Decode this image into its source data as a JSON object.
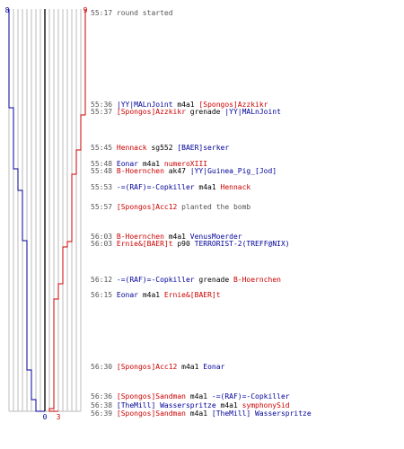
{
  "colors": {
    "red_team": "#cc0000",
    "blue_team": "#000099",
    "text": "#000000",
    "timestamp": "#555555",
    "grid": "#bbbbbb",
    "center_line": "#555555"
  },
  "scoreboard": {
    "blue_start": "8",
    "red_start": "9",
    "blue_end": "0",
    "red_end": "3"
  },
  "events": [
    {
      "time": "55:17",
      "parts": [
        {
          "text": "round started",
          "cls": "g"
        }
      ]
    },
    {
      "time": "55:36",
      "parts": [
        {
          "text": "|YY|MALnJoint",
          "cls": "b"
        },
        {
          "text": " m4a1 ",
          "cls": "k"
        },
        {
          "text": "[Spongos]Azzkikr",
          "cls": "r"
        }
      ]
    },
    {
      "time": "55:37",
      "parts": [
        {
          "text": "[Spongos]Azzkikr",
          "cls": "r"
        },
        {
          "text": " grenade ",
          "cls": "k"
        },
        {
          "text": "|YY|MALnJoint",
          "cls": "b"
        }
      ]
    },
    {
      "time": "55:45",
      "parts": [
        {
          "text": "Hennack",
          "cls": "r"
        },
        {
          "text": " sg552 ",
          "cls": "k"
        },
        {
          "text": "[BAER]serker",
          "cls": "b"
        }
      ]
    },
    {
      "time": "55:48",
      "parts": [
        {
          "text": "Eonar",
          "cls": "b"
        },
        {
          "text": " m4a1 ",
          "cls": "k"
        },
        {
          "text": "numeroXIII",
          "cls": "r"
        }
      ]
    },
    {
      "time": "55:48",
      "parts": [
        {
          "text": "B-Hoernchen",
          "cls": "r"
        },
        {
          "text": " ak47 ",
          "cls": "k"
        },
        {
          "text": "|YY|Guinea_Pig_[Jod]",
          "cls": "b"
        }
      ]
    },
    {
      "time": "55:53",
      "parts": [
        {
          "text": "-=(RAF)=-Copkiller",
          "cls": "b"
        },
        {
          "text": " m4a1 ",
          "cls": "k"
        },
        {
          "text": "Hennack",
          "cls": "r"
        }
      ]
    },
    {
      "time": "55:57",
      "parts": [
        {
          "text": "[Spongos]Acc12",
          "cls": "r"
        },
        {
          "text": " planted the bomb",
          "cls": "g"
        }
      ]
    },
    {
      "time": "56:03",
      "parts": [
        {
          "text": "B-Hoernchen",
          "cls": "r"
        },
        {
          "text": " m4a1 ",
          "cls": "k"
        },
        {
          "text": "VenusMoerder",
          "cls": "b"
        }
      ]
    },
    {
      "time": "56:03",
      "parts": [
        {
          "text": "Ernie&[BAER]t",
          "cls": "r"
        },
        {
          "text": " p90 ",
          "cls": "k"
        },
        {
          "text": "TERRORIST-2(TREFF@NIX)",
          "cls": "b"
        }
      ]
    },
    {
      "time": "56:12",
      "parts": [
        {
          "text": "-=(RAF)=-Copkiller",
          "cls": "b"
        },
        {
          "text": " grenade ",
          "cls": "k"
        },
        {
          "text": "B-Hoernchen",
          "cls": "r"
        }
      ]
    },
    {
      "time": "56:15",
      "parts": [
        {
          "text": "Eonar",
          "cls": "b"
        },
        {
          "text": " m4a1 ",
          "cls": "k"
        },
        {
          "text": "Ernie&[BAER]t",
          "cls": "r"
        }
      ]
    },
    {
      "time": "56:30",
      "parts": [
        {
          "text": "[Spongos]Acc12",
          "cls": "r"
        },
        {
          "text": " m4a1 ",
          "cls": "k"
        },
        {
          "text": "Eonar",
          "cls": "b"
        }
      ]
    },
    {
      "time": "56:36",
      "parts": [
        {
          "text": "[Spongos]Sandman",
          "cls": "r"
        },
        {
          "text": " m4a1 ",
          "cls": "k"
        },
        {
          "text": "-=(RAF)=-Copkiller",
          "cls": "b"
        }
      ]
    },
    {
      "time": "56:38",
      "parts": [
        {
          "text": "[TheMill] Wasserspritze",
          "cls": "b"
        },
        {
          "text": " m4a1 ",
          "cls": "k"
        },
        {
          "text": "symphonySid",
          "cls": "r"
        }
      ]
    },
    {
      "time": "56:39",
      "parts": [
        {
          "text": "[Spongos]Sandman",
          "cls": "r"
        },
        {
          "text": " m4a1 ",
          "cls": "k"
        },
        {
          "text": "[TheMill] Wasserspritze",
          "cls": "b"
        }
      ]
    }
  ]
}
